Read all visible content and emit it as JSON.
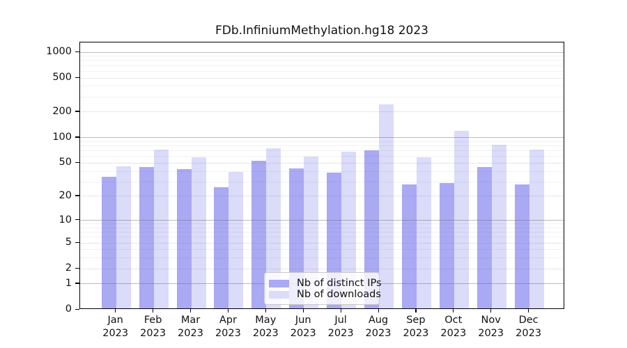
{
  "chart_data": {
    "type": "bar",
    "title": "FDb.InfiniumMethylation.hg18 2023",
    "y_scale": "log1p",
    "grid": true,
    "legend_position": "bottom-center",
    "categories": [
      "Jan",
      "Feb",
      "Mar",
      "Apr",
      "May",
      "Jun",
      "Jul",
      "Aug",
      "Sep",
      "Oct",
      "Nov",
      "Dec"
    ],
    "x_year_label": "2023",
    "y_ticks": [
      0,
      1,
      2,
      5,
      10,
      20,
      50,
      100,
      200,
      500,
      1000
    ],
    "ylim": [
      0,
      1300
    ],
    "series": [
      {
        "name": "Nb of distinct IPs",
        "color": "#a9a9f4",
        "values": [
          33,
          43,
          41,
          25,
          51,
          42,
          37,
          68,
          27,
          28,
          43,
          27
        ]
      },
      {
        "name": "Nb of downloads",
        "color": "#dbdbfa",
        "values": [
          44,
          70,
          57,
          38,
          72,
          58,
          66,
          235,
          57,
          117,
          80,
          70
        ]
      }
    ]
  }
}
